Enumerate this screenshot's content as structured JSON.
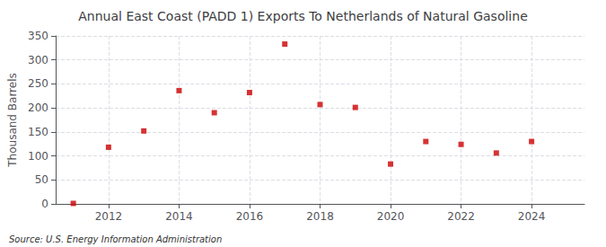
{
  "chart_data": {
    "type": "scatter",
    "title": "Annual East Coast (PADD 1) Exports To Netherlands of Natural Gasoline",
    "ylabel": "Thousand Barrels",
    "annotations": [
      "Source: U.S. Energy Information Administration"
    ],
    "x": [
      2011,
      2012,
      2013,
      2014,
      2015,
      2016,
      2017,
      2018,
      2019,
      2020,
      2021,
      2022,
      2023,
      2024
    ],
    "values": [
      1,
      118,
      152,
      236,
      190,
      232,
      333,
      207,
      201,
      83,
      130,
      124,
      106,
      130
    ],
    "color": "#cc0000",
    "marker": "square",
    "xlim": [
      2010.5,
      2025.5
    ],
    "xticks": [
      2012,
      2014,
      2016,
      2018,
      2020,
      2022,
      2024
    ],
    "ylim": [
      0,
      350
    ],
    "yticks": [
      0,
      50,
      100,
      150,
      200,
      250,
      300,
      350
    ],
    "grid": true
  }
}
